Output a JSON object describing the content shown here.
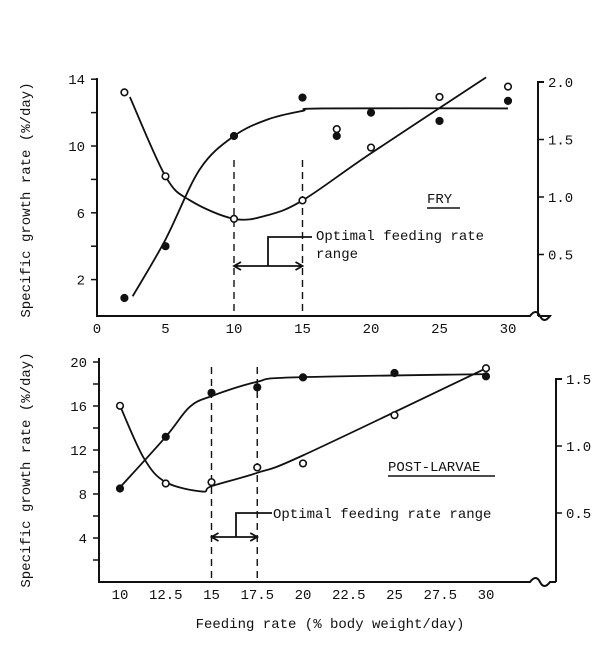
{
  "chart_data": [
    {
      "type": "scatter",
      "panel_label": "FRY",
      "ylabel": "Specific growth rate (%/day)",
      "xlim": [
        0,
        30
      ],
      "x_ticks": [
        "0",
        "5",
        "10",
        "15",
        "20",
        "25",
        "30"
      ],
      "ylim_left": [
        0,
        14
      ],
      "y_ticks_left": [
        "2",
        "6",
        "10",
        "14"
      ],
      "ylim_right": [
        0,
        2.0
      ],
      "y_ticks_right": [
        "0.5",
        "1.0",
        "1.5",
        "2.0"
      ],
      "grid": false,
      "annotation": {
        "line1": "Optimal feeding rate",
        "line2": "range",
        "range": [
          10,
          15
        ]
      },
      "series": [
        {
          "marker": "filled",
          "axis": "left",
          "points": [
            [
              2,
              0.9
            ],
            [
              5,
              4.0
            ],
            [
              10,
              10.6
            ],
            [
              15,
              12.9
            ],
            [
              17.5,
              10.6
            ],
            [
              20,
              12.0
            ],
            [
              25,
              11.5
            ],
            [
              30,
              12.7
            ]
          ],
          "fit": [
            [
              2.6,
              1.0
            ],
            [
              5,
              4.4
            ],
            [
              7.5,
              8.6
            ],
            [
              10,
              10.6
            ],
            [
              12.5,
              11.6
            ],
            [
              15,
              12.1
            ],
            [
              16.5,
              12.25
            ],
            [
              30,
              12.25
            ]
          ]
        },
        {
          "marker": "open",
          "axis": "right",
          "points": [
            [
              2,
              1.91
            ],
            [
              5,
              1.18
            ],
            [
              10,
              0.81
            ],
            [
              15,
              0.97
            ],
            [
              17.5,
              1.59
            ],
            [
              20,
              1.43
            ],
            [
              25,
              1.87
            ],
            [
              30,
              1.96
            ]
          ],
          "fit": [
            [
              2.4,
              1.87
            ],
            [
              5,
              1.18
            ],
            [
              6.8,
              0.97
            ],
            [
              10,
              0.81
            ],
            [
              12.4,
              0.84
            ],
            [
              15,
              0.97
            ],
            [
              20,
              1.38
            ],
            [
              28.4,
              2.04
            ]
          ]
        }
      ]
    },
    {
      "type": "scatter",
      "panel_label": "POST-LARVAE",
      "ylabel": "Specific growth rate (%/day)",
      "xlabel": "Feeding rate (% body weight/day)",
      "xlim": [
        10,
        30
      ],
      "x_ticks": [
        "10",
        "12.5",
        "15",
        "17.5",
        "20",
        "22.5",
        "25",
        "27.5",
        "30"
      ],
      "ylim_left": [
        0,
        20
      ],
      "y_ticks_left": [
        "4",
        "8",
        "12",
        "16",
        "20"
      ],
      "ylim_right": [
        0,
        1.5
      ],
      "y_ticks_right": [
        "0.5",
        "1.0",
        "1.5"
      ],
      "grid": false,
      "annotation": {
        "line1": "Optimal feeding rate range",
        "range": [
          15,
          17.5
        ]
      },
      "series": [
        {
          "marker": "filled",
          "axis": "left",
          "points": [
            [
              10,
              8.5
            ],
            [
              12.5,
              13.2
            ],
            [
              15,
              17.2
            ],
            [
              17.5,
              17.7
            ],
            [
              20,
              18.6
            ],
            [
              25,
              19.0
            ],
            [
              30,
              18.7
            ]
          ],
          "fit": [
            [
              10,
              8.6
            ],
            [
              12.5,
              13.2
            ],
            [
              13.8,
              15.9
            ],
            [
              15,
              16.9
            ],
            [
              17.5,
              18.2
            ],
            [
              19.5,
              18.6
            ],
            [
              30,
              18.9
            ]
          ]
        },
        {
          "marker": "open",
          "axis": "right",
          "points": [
            [
              10,
              1.3
            ],
            [
              12.5,
              0.72
            ],
            [
              15,
              0.73
            ],
            [
              17.5,
              0.84
            ],
            [
              20,
              0.87
            ],
            [
              25,
              1.23
            ],
            [
              30,
              1.58
            ]
          ],
          "fit": [
            [
              10,
              1.3
            ],
            [
              11.3,
              0.91
            ],
            [
              12.5,
              0.73
            ],
            [
              14.5,
              0.66
            ],
            [
              15,
              0.7
            ],
            [
              17.5,
              0.8
            ],
            [
              20,
              0.93
            ],
            [
              30,
              1.58
            ]
          ]
        }
      ]
    }
  ]
}
